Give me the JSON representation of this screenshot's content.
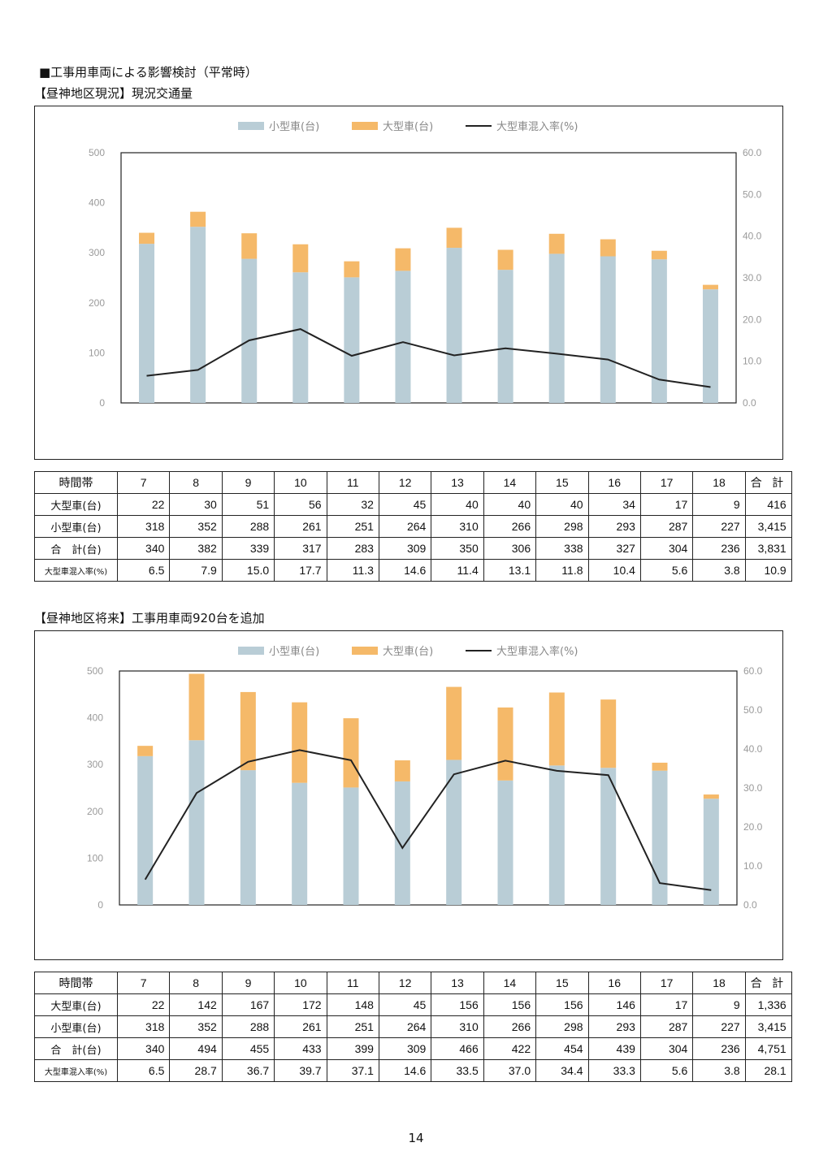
{
  "page": {
    "main_heading": "■工事用車両による影響検討（平常時）",
    "section1_heading": "【昼神地区現況】現況交通量",
    "section2_heading": "【昼神地区将来】工事用車両920台を追加",
    "page_number": "14"
  },
  "colors": {
    "small": "#b9cdd6",
    "large": "#f5b969",
    "line": "#222222"
  },
  "chart_data": [
    {
      "type": "bar",
      "stacked": true,
      "title": "",
      "categories": [
        "7",
        "8",
        "9",
        "10",
        "11",
        "12",
        "13",
        "14",
        "15",
        "16",
        "17",
        "18"
      ],
      "series": [
        {
          "name": "小型車(台)",
          "values": [
            318,
            352,
            288,
            261,
            251,
            264,
            310,
            266,
            298,
            293,
            287,
            227
          ]
        },
        {
          "name": "大型車(台)",
          "values": [
            22,
            30,
            51,
            56,
            32,
            45,
            40,
            40,
            40,
            34,
            17,
            9
          ]
        },
        {
          "name": "大型車混入率(%)",
          "type": "line",
          "axis": "right",
          "values": [
            6.5,
            7.9,
            15.0,
            17.7,
            11.3,
            14.6,
            11.4,
            13.1,
            11.8,
            10.4,
            5.6,
            3.8
          ]
        }
      ],
      "ylim": [
        0,
        500
      ],
      "y_ticks": [
        "0",
        "100",
        "200",
        "300",
        "400",
        "500"
      ],
      "y2lim": [
        0,
        60
      ],
      "y2_ticks": [
        "0.0",
        "10.0",
        "20.0",
        "30.0",
        "40.0",
        "50.0",
        "60.0"
      ],
      "legend": "top-center",
      "grid": false
    },
    {
      "type": "bar",
      "stacked": true,
      "title": "",
      "categories": [
        "7",
        "8",
        "9",
        "10",
        "11",
        "12",
        "13",
        "14",
        "15",
        "16",
        "17",
        "18"
      ],
      "series": [
        {
          "name": "小型車(台)",
          "values": [
            318,
            352,
            288,
            261,
            251,
            264,
            310,
            266,
            298,
            293,
            287,
            227
          ]
        },
        {
          "name": "大型車(台)",
          "values": [
            22,
            142,
            167,
            172,
            148,
            45,
            156,
            156,
            156,
            146,
            17,
            9
          ]
        },
        {
          "name": "大型車混入率(%)",
          "type": "line",
          "axis": "right",
          "values": [
            6.5,
            28.7,
            36.7,
            39.7,
            37.1,
            14.6,
            33.5,
            37.0,
            34.4,
            33.3,
            5.6,
            3.8
          ]
        }
      ],
      "ylim": [
        0,
        500
      ],
      "y_ticks": [
        "0",
        "100",
        "200",
        "300",
        "400",
        "500"
      ],
      "y2lim": [
        0,
        60
      ],
      "y2_ticks": [
        "0.0",
        "10.0",
        "20.0",
        "30.0",
        "40.0",
        "50.0",
        "60.0"
      ],
      "legend": "top-center",
      "grid": false
    }
  ],
  "tables": [
    {
      "header": [
        "時間帯",
        "7",
        "8",
        "9",
        "10",
        "11",
        "12",
        "13",
        "14",
        "15",
        "16",
        "17",
        "18",
        "合 計"
      ],
      "rows": [
        {
          "label": "大型車(台)",
          "values": [
            "22",
            "30",
            "51",
            "56",
            "32",
            "45",
            "40",
            "40",
            "40",
            "34",
            "17",
            "9",
            "416"
          ]
        },
        {
          "label": "小型車(台)",
          "values": [
            "318",
            "352",
            "288",
            "261",
            "251",
            "264",
            "310",
            "266",
            "298",
            "293",
            "287",
            "227",
            "3,415"
          ]
        },
        {
          "label": "合　計(台)",
          "values": [
            "340",
            "382",
            "339",
            "317",
            "283",
            "309",
            "350",
            "306",
            "338",
            "327",
            "304",
            "236",
            "3,831"
          ]
        },
        {
          "label": "大型車混入率(%)",
          "values": [
            "6.5",
            "7.9",
            "15.0",
            "17.7",
            "11.3",
            "14.6",
            "11.4",
            "13.1",
            "11.8",
            "10.4",
            "5.6",
            "3.8",
            "10.9"
          ]
        }
      ]
    },
    {
      "header": [
        "時間帯",
        "7",
        "8",
        "9",
        "10",
        "11",
        "12",
        "13",
        "14",
        "15",
        "16",
        "17",
        "18",
        "合 計"
      ],
      "rows": [
        {
          "label": "大型車(台)",
          "values": [
            "22",
            "142",
            "167",
            "172",
            "148",
            "45",
            "156",
            "156",
            "156",
            "146",
            "17",
            "9",
            "1,336"
          ]
        },
        {
          "label": "小型車(台)",
          "values": [
            "318",
            "352",
            "288",
            "261",
            "251",
            "264",
            "310",
            "266",
            "298",
            "293",
            "287",
            "227",
            "3,415"
          ]
        },
        {
          "label": "合　計(台)",
          "values": [
            "340",
            "494",
            "455",
            "433",
            "399",
            "309",
            "466",
            "422",
            "454",
            "439",
            "304",
            "236",
            "4,751"
          ]
        },
        {
          "label": "大型車混入率(%)",
          "values": [
            "6.5",
            "28.7",
            "36.7",
            "39.7",
            "37.1",
            "14.6",
            "33.5",
            "37.0",
            "34.4",
            "33.3",
            "5.6",
            "3.8",
            "28.1"
          ]
        }
      ]
    }
  ]
}
